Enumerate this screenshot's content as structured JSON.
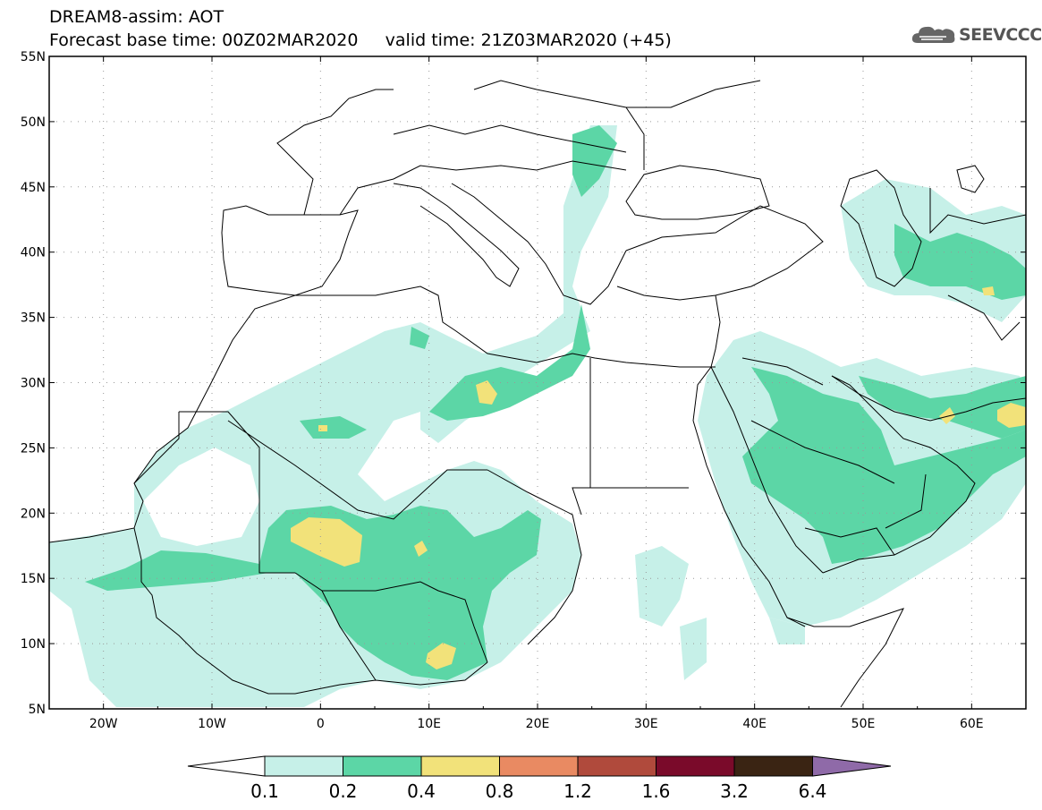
{
  "title": {
    "line1": "DREAM8-assim: AOT",
    "line2_left": "Forecast base time: 00Z02MAR2020",
    "line2_right": "valid time: 21Z03MAR2020 (+45)"
  },
  "logo": {
    "text": "SEEVCCC",
    "icon": "cloud-logo-icon"
  },
  "map": {
    "lat_labels": [
      "55N",
      "50N",
      "45N",
      "40N",
      "35N",
      "30N",
      "25N",
      "20N",
      "15N",
      "10N",
      "5N"
    ],
    "lon_labels": [
      "20W",
      "10W",
      "0",
      "10E",
      "20E",
      "30E",
      "40E",
      "50E",
      "60E"
    ],
    "lat_range": [
      5,
      55
    ],
    "lon_range": [
      -25,
      65
    ],
    "grid": "dotted"
  },
  "colorbar": {
    "labels": [
      "0.1",
      "0.2",
      "0.4",
      "0.8",
      "1.2",
      "1.6",
      "3.2",
      "6.4"
    ],
    "colors": {
      "under": "#ffffff",
      "b1": "#c6f0e8",
      "b2": "#5cd6a6",
      "b3": "#f2e27a",
      "b4": "#e98a62",
      "b5": "#b04a3c",
      "b6": "#7a0a2a",
      "b7": "#3a2413",
      "over": "#8f6aa8"
    }
  }
}
